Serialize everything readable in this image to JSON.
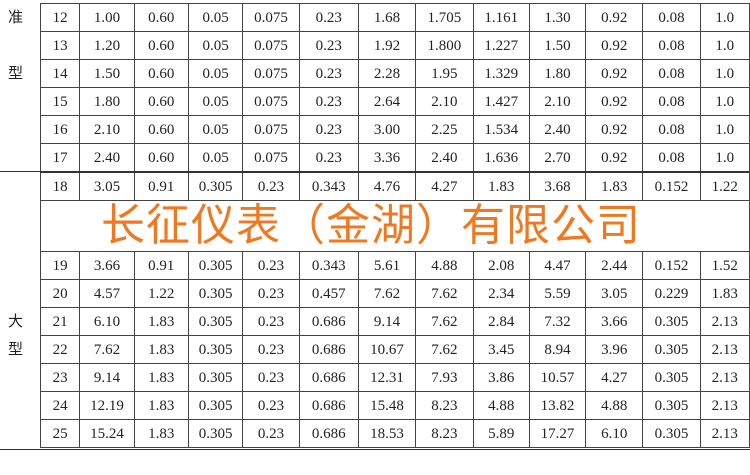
{
  "group_labels": {
    "standard_partial": [
      "准",
      "型"
    ],
    "large": [
      "大",
      "型"
    ]
  },
  "rows": [
    [
      "12",
      "1.00",
      "0.60",
      "0.05",
      "0.075",
      "0.23",
      "1.68",
      "1.705",
      "1.161",
      "1.30",
      "0.92",
      "0.08",
      "1.0"
    ],
    [
      "13",
      "1.20",
      "0.60",
      "0.05",
      "0.075",
      "0.23",
      "1.92",
      "1.800",
      "1.227",
      "1.50",
      "0.92",
      "0.08",
      "1.0"
    ],
    [
      "14",
      "1.50",
      "0.60",
      "0.05",
      "0.075",
      "0.23",
      "2.28",
      "1.95",
      "1.329",
      "1.80",
      "0.92",
      "0.08",
      "1.0"
    ],
    [
      "15",
      "1.80",
      "0.60",
      "0.05",
      "0.075",
      "0.23",
      "2.64",
      "2.10",
      "1.427",
      "2.10",
      "0.92",
      "0.08",
      "1.0"
    ],
    [
      "16",
      "2.10",
      "0.60",
      "0.05",
      "0.075",
      "0.23",
      "3.00",
      "2.25",
      "1.534",
      "2.40",
      "0.92",
      "0.08",
      "1.0"
    ],
    [
      "17",
      "2.40",
      "0.60",
      "0.05",
      "0.075",
      "0.23",
      "3.36",
      "2.40",
      "1.636",
      "2.70",
      "0.92",
      "0.08",
      "1.0"
    ],
    [
      "18",
      "3.05",
      "0.91",
      "0.305",
      "0.23",
      "0.343",
      "4.76",
      "4.27",
      "1.83",
      "3.68",
      "1.83",
      "0.152",
      "1.22"
    ],
    [
      "19",
      "3.66",
      "0.91",
      "0.305",
      "0.23",
      "0.343",
      "5.61",
      "4.88",
      "2.08",
      "4.47",
      "2.44",
      "0.152",
      "1.52"
    ],
    [
      "20",
      "4.57",
      "1.22",
      "0.305",
      "0.23",
      "0.457",
      "7.62",
      "7.62",
      "2.34",
      "5.59",
      "3.05",
      "0.229",
      "1.83"
    ],
    [
      "21",
      "6.10",
      "1.83",
      "0.305",
      "0.23",
      "0.686",
      "9.14",
      "7.62",
      "2.84",
      "7.32",
      "3.66",
      "0.305",
      "2.13"
    ],
    [
      "22",
      "7.62",
      "1.83",
      "0.305",
      "0.23",
      "0.686",
      "10.67",
      "7.62",
      "3.45",
      "8.94",
      "3.96",
      "0.305",
      "2.13"
    ],
    [
      "23",
      "9.14",
      "1.83",
      "0.305",
      "0.23",
      "0.686",
      "12.31",
      "7.93",
      "3.86",
      "10.57",
      "4.27",
      "0.305",
      "2.13"
    ],
    [
      "24",
      "12.19",
      "1.83",
      "0.305",
      "0.23",
      "0.686",
      "15.48",
      "8.23",
      "4.88",
      "13.82",
      "4.88",
      "0.305",
      "2.13"
    ],
    [
      "25",
      "15.24",
      "1.83",
      "0.305",
      "0.23",
      "0.686",
      "18.53",
      "8.23",
      "5.89",
      "17.27",
      "6.10",
      "0.305",
      "2.13"
    ]
  ],
  "watermark": "长征仪表（金湖）有限公司",
  "colors": {
    "watermark": "#f07820"
  }
}
